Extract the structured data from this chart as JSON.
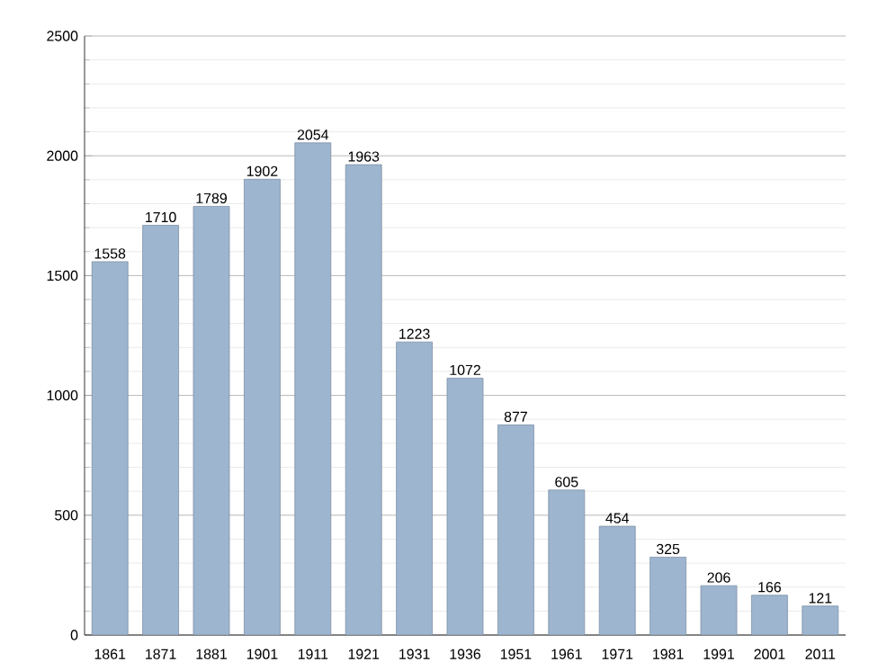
{
  "chart_data": {
    "type": "bar",
    "categories": [
      "1861",
      "1871",
      "1881",
      "1901",
      "1911",
      "1921",
      "1931",
      "1936",
      "1951",
      "1961",
      "1971",
      "1981",
      "1991",
      "2001",
      "2011"
    ],
    "values": [
      1558,
      1710,
      1789,
      1902,
      2054,
      1963,
      1223,
      1072,
      877,
      605,
      454,
      325,
      206,
      166,
      121
    ],
    "value_labels": [
      "1558",
      "1710",
      "1789",
      "1902",
      "2054",
      "1963",
      "1223",
      "1072",
      "877",
      "605",
      "454",
      "325",
      "206",
      "166",
      "121"
    ],
    "color": "#9db5cf",
    "ylim": [
      0,
      2500
    ],
    "yticks": [
      0,
      500,
      1000,
      1500,
      2000,
      2500
    ],
    "grid": "y"
  }
}
